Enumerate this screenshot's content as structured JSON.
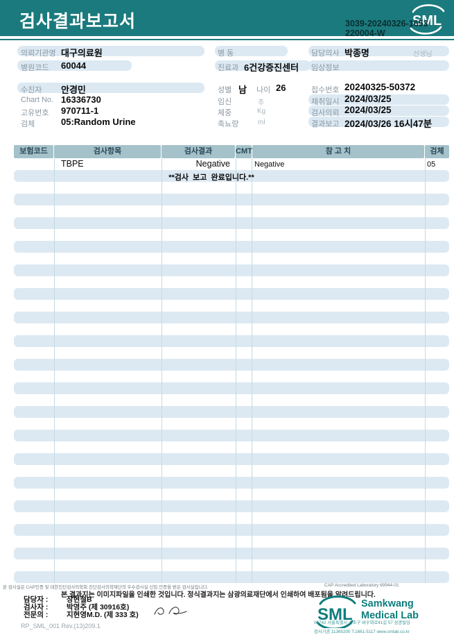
{
  "header": {
    "title": "검사결과보고서",
    "doc_number_line1": "3039-20240326-1653",
    "doc_number_line2": "220004-W",
    "logo_text": "SML"
  },
  "info": {
    "left": {
      "org_label": "의뢰기관명",
      "org_value": "대구의료원",
      "hospital_code_label": "병원코드",
      "hospital_code_value": "60044",
      "patient_label": "수진자",
      "patient_value": "안경민",
      "chart_label": "Chart No.",
      "chart_value": "16336730",
      "unique_label": "고유번호",
      "unique_value": "970711-1",
      "specimen_label": "검체",
      "specimen_value": "05:Random Urine"
    },
    "middle": {
      "ward_label": "병 동",
      "ward_value": "",
      "dept_label": "진료과",
      "dept_value": "6건강증진센터",
      "sex_label": "성별",
      "sex_value": "남",
      "age_label": "나이",
      "age_value": "26",
      "pregnancy_label": "임신",
      "pregnancy_unit": "주",
      "weight_label": "체중",
      "weight_unit": "Kg",
      "urine_label": "축뇨량",
      "urine_unit": "ml"
    },
    "right": {
      "doctor_label": "담당의사",
      "doctor_value": "박종명",
      "doctor_suffix": "선생님",
      "clinical_label": "임상정보",
      "clinical_value": "",
      "receipt_label": "접수번호",
      "receipt_value": "20240325-50372",
      "collect_label": "채취일시",
      "collect_value": "2024/03/25",
      "request_label": "검사의뢰",
      "request_value": "2024/03/25",
      "report_label": "결과보고",
      "report_value": "2024/03/26 16시47분"
    }
  },
  "table": {
    "columns": [
      "보험코드",
      "검사항목",
      "검사결과",
      "CMT",
      "참 고 치",
      "검체"
    ],
    "rows": [
      {
        "code": "",
        "item": "TBPE",
        "result": "Negative",
        "cmt": "",
        "reference": "Negative",
        "specimen": "05"
      }
    ],
    "completion_message": "**검사  보고  완료입니다.**"
  },
  "footer": {
    "accreditation_left": "본 검사실은 CAP인증 및 대한진단검사의학회 진단검사의학재단의 우수검사실 신임 인증을 받은 검사실입니다.",
    "accreditation_right": "CAP Accredited Laboratory 69944-01",
    "notice": "본 결과지는 이미지파일을 인쇄한 것입니다. 정식결과지는 삼광의료재단에서 인쇄하여 배포됨을 알려드립니다.",
    "staff": [
      {
        "label": "담당자 :",
        "value": "장현철B"
      },
      {
        "label": "검사자 :",
        "value": "박영주 (제 30916호)"
      },
      {
        "label": "전문의 :",
        "value": "지현영M.D. (제 333 호)"
      }
    ],
    "logo_text": "SML",
    "brand_line1": "Samkwang",
    "brand_line2": "Medical Lab",
    "address_line1": "06742 서울특별시 서초구 바우뫼로41길 57 삼광빌딩",
    "address_line2": "검사기관 11365200 T.1661-5117 www.smlab.co.kr",
    "doc_ref": "RP_SML_001 Rev.(13)209.1"
  },
  "colors": {
    "teal": "#1b7a7d",
    "strip_blue": "#dce9f3",
    "table_header": "#a5c2cb",
    "stripe_blue": "#dde9f2"
  }
}
